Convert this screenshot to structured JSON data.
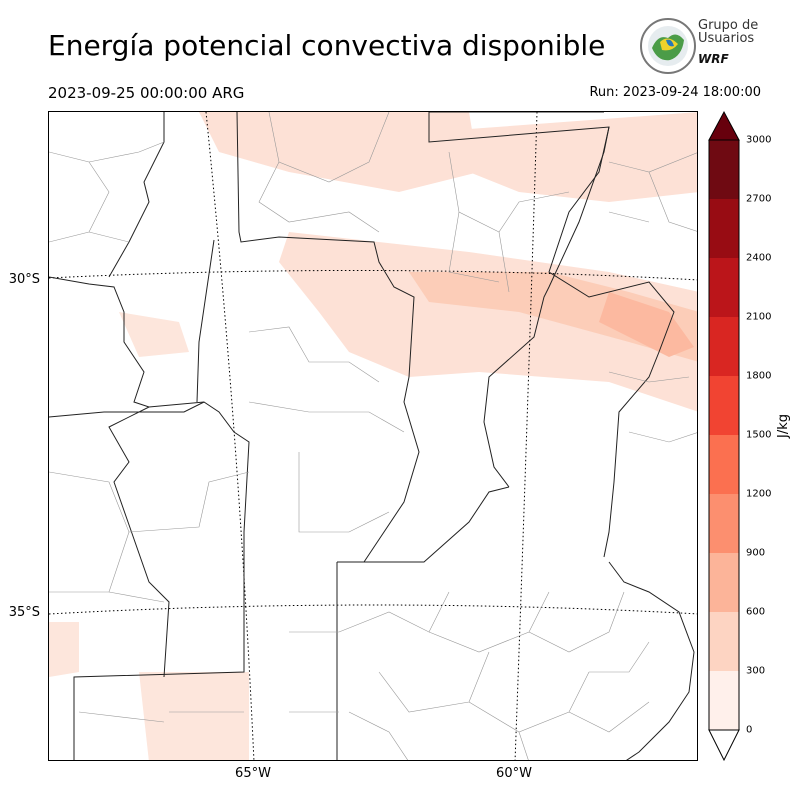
{
  "title": "Energía potencial convectiva disponible",
  "valid_time": "2023-09-25 00:00:00 ARG",
  "run_time": "Run: 2023-09-24 18:00:00",
  "logo": {
    "line1": "Grupo de",
    "line2": "Usuarios",
    "line3": "WRF"
  },
  "map": {
    "lat_labels": [
      "30°S",
      "35°S"
    ],
    "lon_labels": [
      "65°W",
      "60°W"
    ],
    "field": "CAPE"
  },
  "colorbar": {
    "unit": "J/kg",
    "ticks": [
      "0",
      "300",
      "600",
      "900",
      "1200",
      "1500",
      "1800",
      "2100",
      "2400",
      "2700",
      "3000"
    ],
    "colors": [
      "#fff0eb",
      "#fdd4c2",
      "#fcb499",
      "#fc8f6f",
      "#fb7050",
      "#f14432",
      "#d92622",
      "#bb151a",
      "#980c13",
      "#6f0a12"
    ],
    "over_color": "#67000d",
    "under_color": "#ffffff"
  }
}
